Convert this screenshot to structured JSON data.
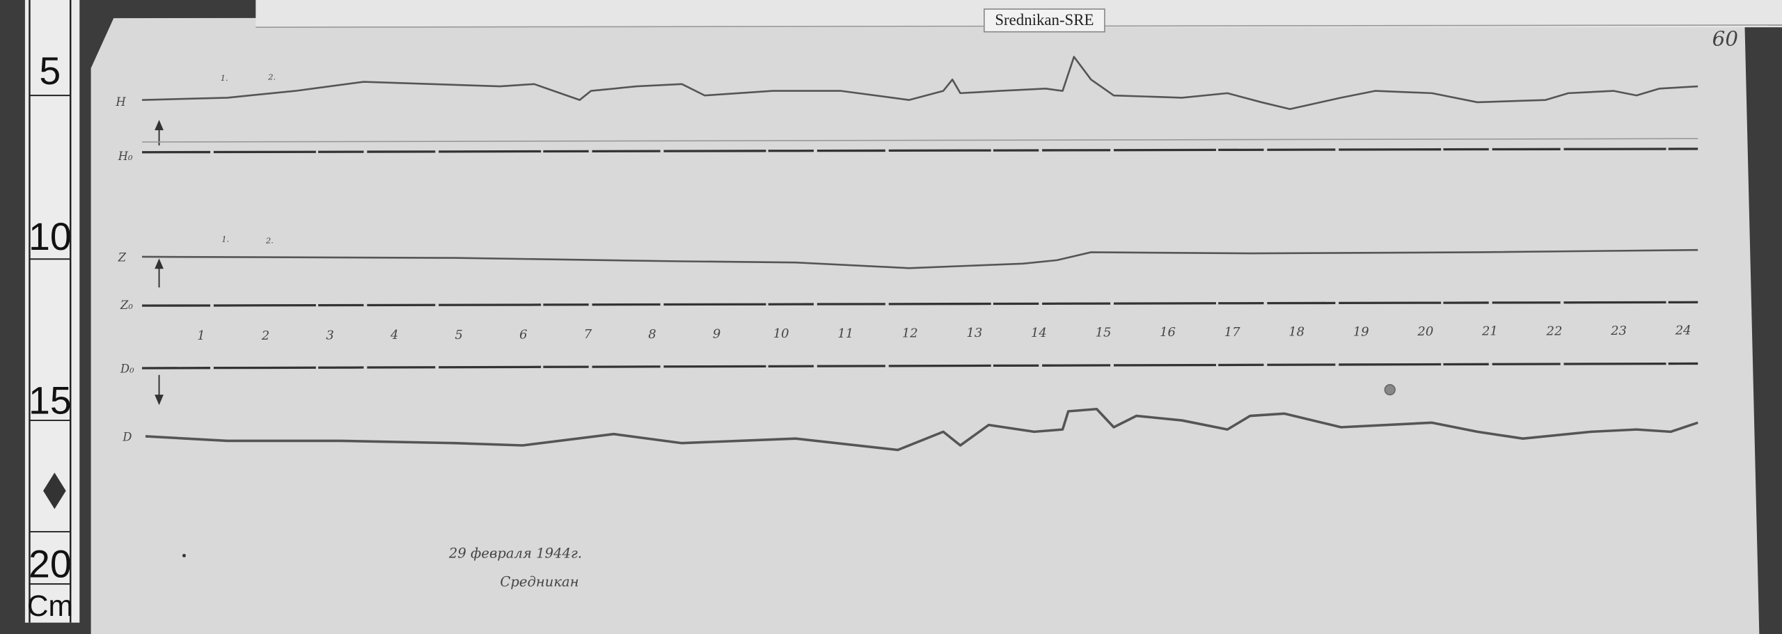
{
  "label": "Srednikan-SRE",
  "sheet_number": "60",
  "ruler": {
    "ticks": [
      "5",
      "10",
      "15",
      "20"
    ],
    "unit": "Cm"
  },
  "traces": {
    "h": "H",
    "h0": "H₀",
    "z": "Z",
    "z0": "Z₀",
    "d0": "D₀",
    "d": "D"
  },
  "trace_marks": [
    "1.",
    "2."
  ],
  "hours": [
    "1",
    "2",
    "3",
    "4",
    "5",
    "6",
    "7",
    "8",
    "9",
    "10",
    "11",
    "12",
    "13",
    "14",
    "15",
    "16",
    "17",
    "18",
    "19",
    "20",
    "21",
    "22",
    "23",
    "24"
  ],
  "caption": {
    "date": "29 февраля 1944г.",
    "place": "Средникан"
  }
}
